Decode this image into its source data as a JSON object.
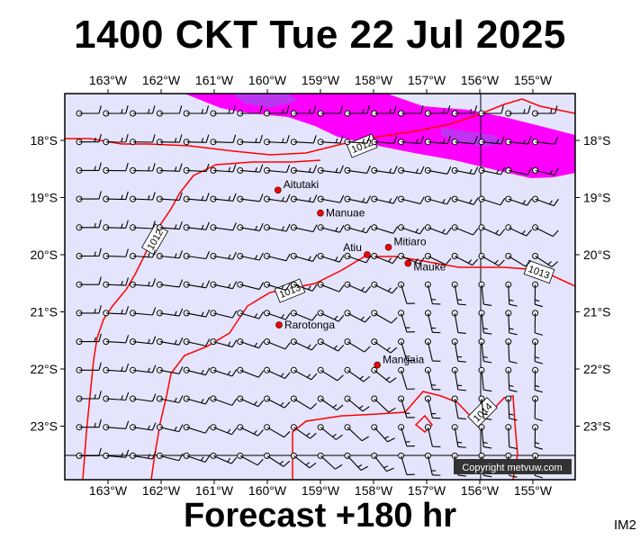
{
  "title": "1400 CKT Tue 22 Jul 2025",
  "footer": "Forecast +180 hr",
  "code": "IM2",
  "copyright": "Copyright metvuw.com",
  "lon_labels": [
    "163°W",
    "162°W",
    "161°W",
    "160°W",
    "159°W",
    "158°W",
    "157°W",
    "156°W",
    "155°W"
  ],
  "lat_labels": [
    "18°S",
    "19°S",
    "20°S",
    "21°S",
    "22°S",
    "23°S"
  ],
  "islands": [
    {
      "name": "Aitutaki",
      "lon": -159.8,
      "lat": -18.87
    },
    {
      "name": "Manuae",
      "lon": -159.0,
      "lat": -19.27
    },
    {
      "name": "Atiu",
      "lon": -158.12,
      "lat": -20.0
    },
    {
      "name": "Mitiaro",
      "lon": -157.72,
      "lat": -19.87
    },
    {
      "name": "Mauke",
      "lon": -157.35,
      "lat": -20.15
    },
    {
      "name": "Rarotonga",
      "lon": -159.78,
      "lat": -21.23
    },
    {
      "name": "Mangaia",
      "lon": -157.93,
      "lat": -21.93
    }
  ],
  "isobar_labels": [
    "1012",
    "1012",
    "1013",
    "1013",
    "1014"
  ],
  "colors": {
    "map_bg": "#e4e4fc",
    "isobar": "#ff0000",
    "rain_light": "#ff00ff",
    "rain_heavy": "#b040f0",
    "island": "#ff0000"
  }
}
